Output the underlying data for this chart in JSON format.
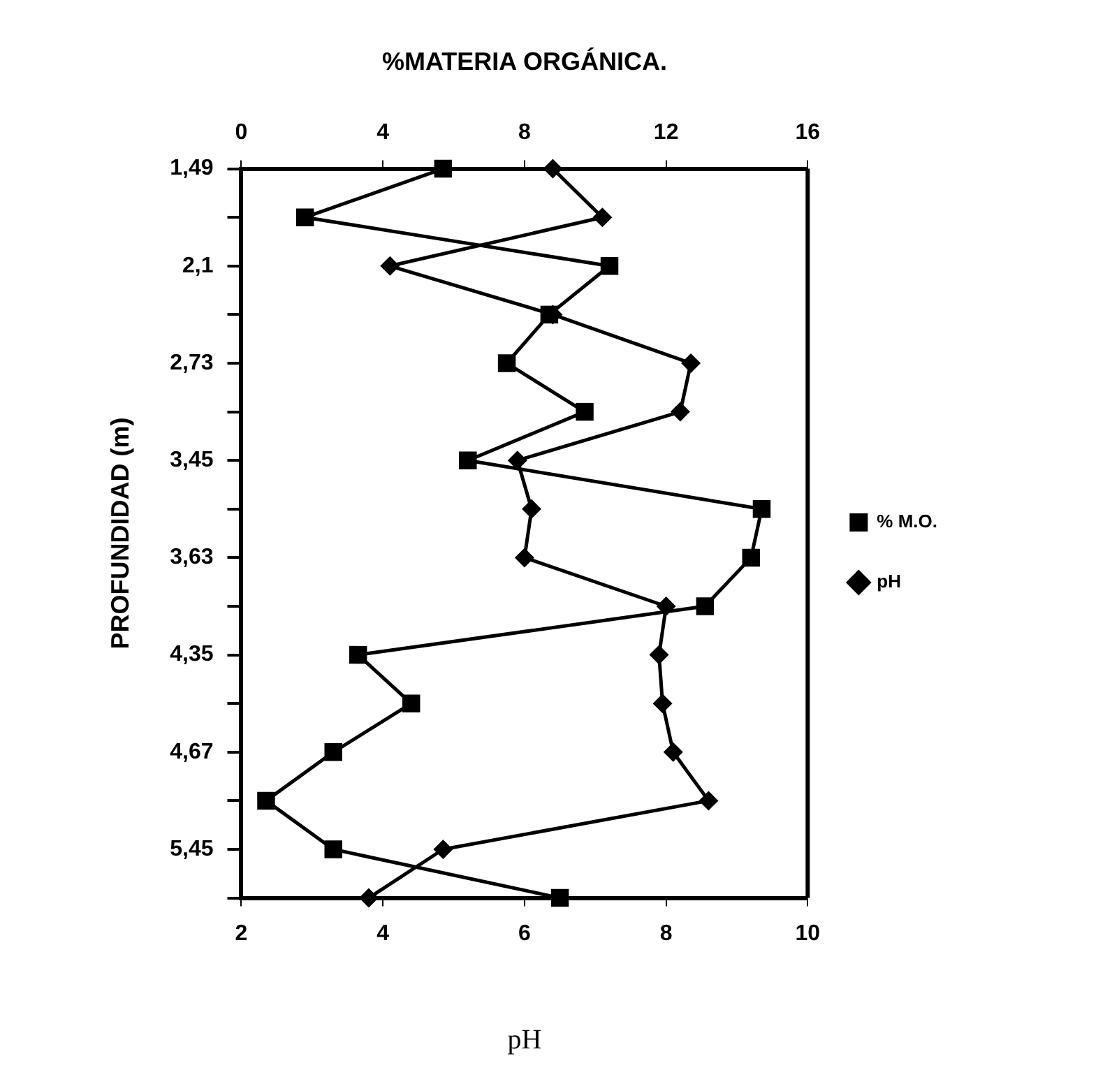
{
  "chart_data": {
    "type": "line",
    "orientation": "horizontal",
    "x2label": "%MATERIA ORGÁNICA.",
    "xlabel": "pH",
    "ylabel": "PROFUNDIDAD (m)",
    "categories": [
      "1,49",
      null,
      "2,1",
      null,
      "2,73",
      null,
      "3,45",
      null,
      "3,63",
      null,
      "4,35",
      null,
      "4,67",
      null,
      "5,45",
      null
    ],
    "series": [
      {
        "name": "% M.O.",
        "color": "#000000",
        "axis": "x2",
        "marker": "square",
        "values": [
          5.7,
          1.8,
          10.4,
          8.7,
          7.5,
          9.7,
          6.4,
          14.7,
          14.4,
          13.1,
          3.3,
          4.8,
          2.6,
          0.7,
          2.6,
          9.0
        ]
      },
      {
        "name": "pH",
        "color": "#000000",
        "marker": "diamond",
        "values": [
          6.4,
          7.1,
          4.1,
          6.4,
          8.35,
          8.2,
          5.9,
          6.1,
          6.0,
          8.0,
          7.9,
          7.95,
          8.1,
          8.6,
          4.85,
          3.8
        ]
      }
    ],
    "xlim": [
      2,
      10
    ],
    "xticks": [
      2,
      4,
      6,
      8,
      10
    ],
    "x2lim": [
      0,
      16
    ],
    "x2ticks": [
      0,
      4,
      8,
      12,
      16
    ],
    "legend": "right"
  }
}
